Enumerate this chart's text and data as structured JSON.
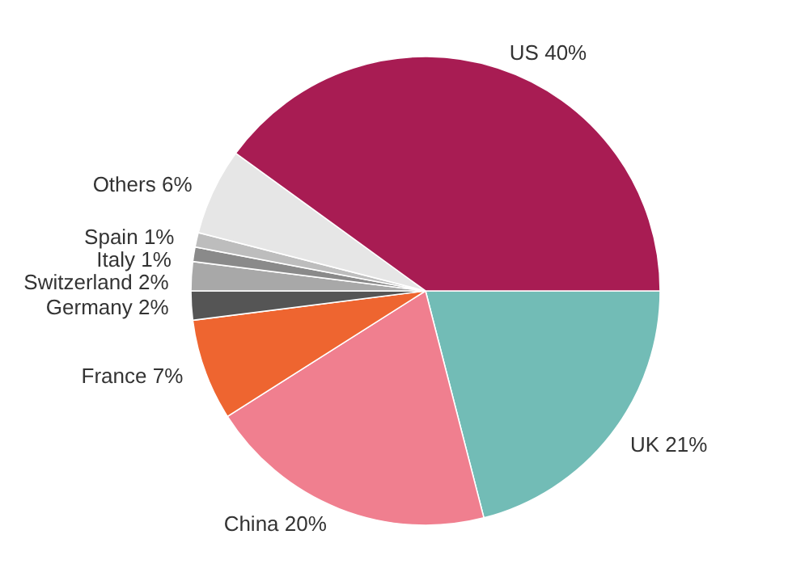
{
  "chart_data": {
    "type": "pie",
    "categories": [
      "UK",
      "China",
      "France",
      "Germany",
      "Switzerland",
      "Italy",
      "Spain",
      "Others",
      "US"
    ],
    "values": [
      21,
      20,
      7,
      2,
      2,
      1,
      1,
      6,
      40
    ],
    "colors": [
      "#72bcb6",
      "#f07f8f",
      "#ee6530",
      "#555555",
      "#a8a8a8",
      "#8a8a8a",
      "#bdbdbd",
      "#e6e6e6",
      "#a81c53"
    ],
    "value_labels": [
      "21%",
      "20%",
      "7%",
      "2%",
      "2%",
      "1%",
      "1%",
      "6%",
      "40%"
    ]
  }
}
